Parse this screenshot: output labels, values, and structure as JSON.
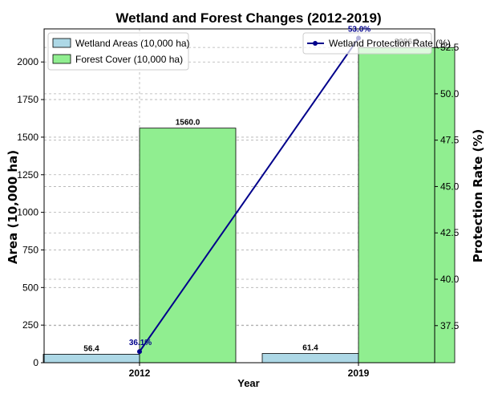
{
  "chart_data": {
    "type": "bar",
    "title": "Wetland and Forest Changes (2012-2019)",
    "xlabel": "Year",
    "ylabel": "Area (10,000 ha)",
    "ylabel_right": "Protection Rate (%)",
    "categories": [
      "2012",
      "2019"
    ],
    "ylim": [
      0,
      2220
    ],
    "yticks": [
      0,
      250,
      500,
      750,
      1000,
      1250,
      1500,
      1750,
      2000
    ],
    "ylim_right": [
      35.5,
      53.5
    ],
    "yticks_right": [
      "37.5",
      "40.0",
      "42.5",
      "45.0",
      "47.5",
      "50.0",
      "52.5"
    ],
    "grid": true,
    "legend_left_position": "top-left",
    "legend_right_position": "top-right",
    "series": [
      {
        "name": "Wetland Areas (10,000 ha)",
        "kind": "bar",
        "color": "#add8e6",
        "values": [
          56.4,
          61.4
        ],
        "labels": [
          "56.4",
          "61.4"
        ]
      },
      {
        "name": "Forest Cover (10,000 ha)",
        "kind": "bar",
        "color": "#90ee90",
        "values": [
          1560.0,
          2096.0
        ],
        "labels": [
          "1560.0",
          "2096.0"
        ]
      },
      {
        "name": "Wetland Protection Rate (%)",
        "kind": "line",
        "axis": "right",
        "color": "#00008b",
        "values": [
          36.1,
          53.0
        ],
        "labels": [
          "36.1%",
          "53.0%"
        ]
      }
    ]
  }
}
